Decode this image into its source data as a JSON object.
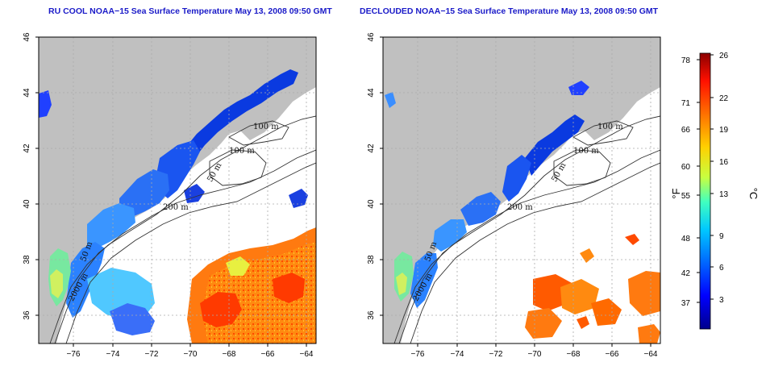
{
  "maps": [
    {
      "id": "left",
      "title": "RU COOL NOAA−15 Sea Surface Temperature May 13, 2008 09:50 GMT"
    },
    {
      "id": "right",
      "title": "DECLOUDED NOAA−15 Sea Surface Temperature May 13, 2008 09:50 GMT"
    }
  ],
  "axes": {
    "x_ticks": [
      "−76",
      "−74",
      "−72",
      "−70",
      "−68",
      "−66",
      "−64"
    ],
    "y_ticks": [
      "46",
      "44",
      "42",
      "40",
      "38",
      "36"
    ],
    "lon_range": [
      -77.2,
      -62.9
    ],
    "lat_range": [
      35.0,
      46.0
    ]
  },
  "contours": {
    "labels": [
      "100 m",
      "100 m",
      "50 m",
      "200 m",
      "50 m",
      "2000 m"
    ]
  },
  "colorbar": {
    "fahrenheit_ticks": [
      "78",
      "71",
      "66",
      "60",
      "55",
      "48",
      "42",
      "37"
    ],
    "celsius_ticks": [
      "26",
      "22",
      "19",
      "16",
      "13",
      "9",
      "6",
      "3"
    ],
    "fahrenheit_unit": "°F",
    "celsius_unit": "°C",
    "colors": [
      "#00008c",
      "#0000ff",
      "#0066ff",
      "#00c8ff",
      "#40ffc0",
      "#c8ff40",
      "#ffd000",
      "#ff7000",
      "#ff1000",
      "#8c0000"
    ]
  },
  "colors": {
    "land": "#c0c0c0",
    "title": "#1a1ac8",
    "grid": "#aaaaaa"
  }
}
